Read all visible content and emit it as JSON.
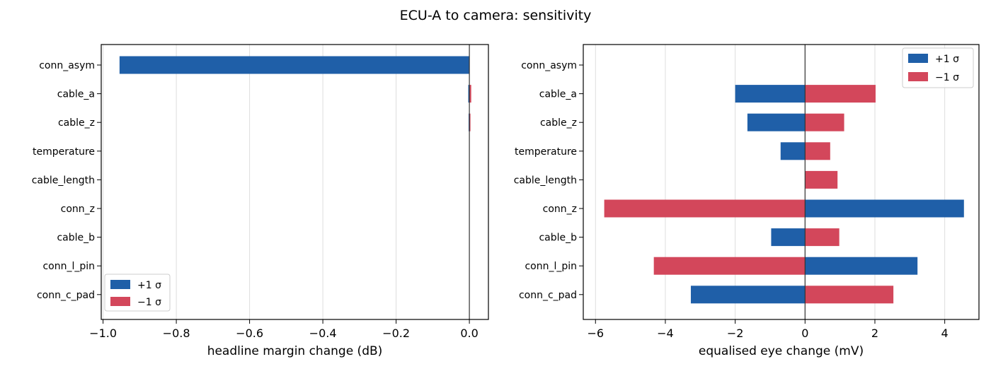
{
  "figure_title": "ECU-A to camera: sensitivity",
  "colors": {
    "plus": "#1f5fa8",
    "minus": "#d3475b",
    "grid": "#dddddd",
    "zero": "#333333"
  },
  "chart_data": [
    {
      "type": "bar",
      "orientation": "horizontal",
      "title": "",
      "xlabel": "headline margin change (dB)",
      "ylabel": "",
      "categories": [
        "conn_asym",
        "cable_a",
        "cable_z",
        "temperature",
        "cable_length",
        "conn_z",
        "cable_b",
        "conn_l_pin",
        "conn_c_pad"
      ],
      "series": [
        {
          "name": "+1 σ",
          "values": [
            -0.955,
            -0.003,
            -0.002,
            0,
            0,
            0,
            0,
            0,
            0
          ]
        },
        {
          "name": "−1 σ",
          "values": [
            0,
            0.005,
            0.002,
            0,
            0,
            0,
            0,
            0,
            0
          ]
        }
      ],
      "xlim": [
        -1.005,
        0.052
      ],
      "xticks": [
        -1.0,
        -0.8,
        -0.6,
        -0.4,
        -0.2,
        0.0
      ],
      "xtick_labels": [
        "−1.0",
        "−0.8",
        "−0.6",
        "−0.4",
        "−0.2",
        "0.0"
      ],
      "grid": "x",
      "legend": {
        "position": "lower-left",
        "entries": [
          "+1 σ",
          "−1 σ"
        ]
      }
    },
    {
      "type": "bar",
      "orientation": "horizontal",
      "title": "",
      "xlabel": "equalised eye change (mV)",
      "ylabel": "",
      "categories": [
        "conn_asym",
        "cable_a",
        "cable_z",
        "temperature",
        "cable_length",
        "conn_z",
        "cable_b",
        "conn_l_pin",
        "conn_c_pad"
      ],
      "series": [
        {
          "name": "+1 σ",
          "values": [
            0,
            -2.0,
            -1.65,
            -0.7,
            0,
            4.55,
            -0.97,
            3.22,
            -3.27
          ]
        },
        {
          "name": "−1 σ",
          "values": [
            0,
            2.02,
            1.12,
            0.72,
            0.93,
            -5.75,
            0.98,
            -4.33,
            2.53
          ]
        }
      ],
      "xlim": [
        -6.35,
        4.98
      ],
      "xticks": [
        -6,
        -4,
        -2,
        0,
        2,
        4
      ],
      "xtick_labels": [
        "−6",
        "−4",
        "−2",
        "0",
        "2",
        "4"
      ],
      "grid": "x",
      "legend": {
        "position": "top-right",
        "entries": [
          "+1 σ",
          "−1 σ"
        ]
      }
    }
  ]
}
